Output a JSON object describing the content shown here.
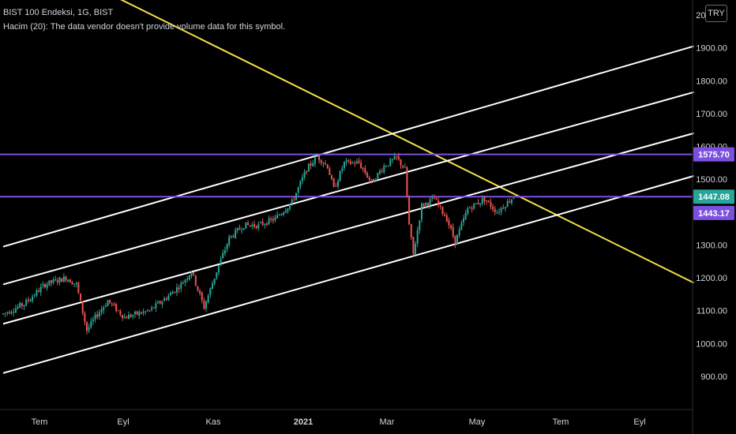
{
  "header": {
    "symbol_line": "BIST 100 Endeksi, 1G, BIST",
    "volume_line": "Hacim (20): The data vendor doesn't provide volume data for this symbol."
  },
  "currency_button": "TRY",
  "colors": {
    "background": "#000000",
    "up": "#26a69a",
    "down": "#ef5350",
    "trendline_yellow": "#f5e14c",
    "channel_white": "#ffffff",
    "horizontal_purple": "#7b4fe0",
    "last_price_badge": "#26a69a",
    "level_badge": "#7b4fe0"
  },
  "chart_data": {
    "type": "candlestick",
    "y_axis": {
      "min": 850,
      "max": 2050,
      "ticks": [
        "900.00",
        "1000.00",
        "1100.00",
        "1200.00",
        "1300.00",
        "1400.00",
        "1500.00",
        "1600.00",
        "1700.00",
        "1800.00",
        "1900.00",
        "2000.00"
      ]
    },
    "x_axis": {
      "ticks": [
        "Tem",
        "Eyl",
        "Kas",
        "2021",
        "Mar",
        "May",
        "Tem",
        "Eyl"
      ],
      "bold_tick": "2021"
    },
    "price_labels": [
      {
        "text": "1575.70",
        "value": 1575.7,
        "style": "level"
      },
      {
        "text": "1447.08",
        "value": 1447.08,
        "style": "last"
      },
      {
        "text": "1443.17",
        "value": 1443.17,
        "style": "level"
      }
    ],
    "horizontal_lines": [
      1575.7,
      1447.08
    ],
    "price_path_anchors": [
      {
        "i": 0,
        "p": 1090
      },
      {
        "i": 10,
        "p": 1120
      },
      {
        "i": 20,
        "p": 1180
      },
      {
        "i": 30,
        "p": 1200
      },
      {
        "i": 35,
        "p": 1180
      },
      {
        "i": 40,
        "p": 1040
      },
      {
        "i": 44,
        "p": 1080
      },
      {
        "i": 50,
        "p": 1130
      },
      {
        "i": 58,
        "p": 1080
      },
      {
        "i": 70,
        "p": 1100
      },
      {
        "i": 78,
        "p": 1140
      },
      {
        "i": 85,
        "p": 1180
      },
      {
        "i": 90,
        "p": 1220
      },
      {
        "i": 96,
        "p": 1110
      },
      {
        "i": 102,
        "p": 1220
      },
      {
        "i": 108,
        "p": 1320
      },
      {
        "i": 115,
        "p": 1360
      },
      {
        "i": 122,
        "p": 1360
      },
      {
        "i": 130,
        "p": 1380
      },
      {
        "i": 138,
        "p": 1430
      },
      {
        "i": 145,
        "p": 1530
      },
      {
        "i": 150,
        "p": 1570
      },
      {
        "i": 155,
        "p": 1540
      },
      {
        "i": 158,
        "p": 1470
      },
      {
        "i": 163,
        "p": 1550
      },
      {
        "i": 170,
        "p": 1550
      },
      {
        "i": 176,
        "p": 1490
      },
      {
        "i": 182,
        "p": 1540
      },
      {
        "i": 188,
        "p": 1565
      },
      {
        "i": 192,
        "p": 1530
      },
      {
        "i": 194,
        "p": 1360
      },
      {
        "i": 196,
        "p": 1270
      },
      {
        "i": 200,
        "p": 1420
      },
      {
        "i": 206,
        "p": 1440
      },
      {
        "i": 212,
        "p": 1380
      },
      {
        "i": 216,
        "p": 1310
      },
      {
        "i": 222,
        "p": 1410
      },
      {
        "i": 230,
        "p": 1440
      },
      {
        "i": 236,
        "p": 1400
      },
      {
        "i": 241,
        "p": 1430
      },
      {
        "i": 244,
        "p": 1447
      }
    ],
    "trendlines": [
      {
        "name": "yellow-trendline",
        "from": {
          "i": 42,
          "p": 2092
        },
        "to": {
          "i": 330,
          "p": 1185
        }
      },
      {
        "name": "channel-1",
        "from": {
          "i": 0,
          "p": 1295
        },
        "to": {
          "i": 330,
          "p": 1905
        }
      },
      {
        "name": "channel-2",
        "from": {
          "i": 0,
          "p": 1180
        },
        "to": {
          "i": 330,
          "p": 1765
        }
      },
      {
        "name": "channel-3",
        "from": {
          "i": 0,
          "p": 1060
        },
        "to": {
          "i": 330,
          "p": 1640
        }
      },
      {
        "name": "channel-4",
        "from": {
          "i": 0,
          "p": 910
        },
        "to": {
          "i": 330,
          "p": 1510
        }
      }
    ]
  }
}
